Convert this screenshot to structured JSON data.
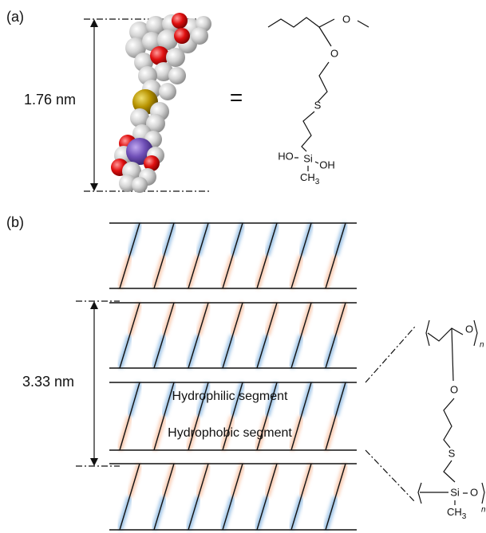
{
  "panel_a": {
    "label": "(a)",
    "length": "1.76 nm",
    "equals": "=",
    "atoms": {
      "o1": "O",
      "o2": "O",
      "s": "S",
      "ho": "HO",
      "si": "Si",
      "oh": "OH",
      "ch": "CH",
      "ch_sub": "3"
    }
  },
  "panel_b": {
    "label": "(b)",
    "spacing": "3.33 nm",
    "hydrophilic": "Hydrophilic segment",
    "hydrophobic": "Hydrophobic segment",
    "atoms": {
      "o1": "O",
      "n1": "n",
      "o2": "O",
      "s": "S",
      "si": "Si",
      "o3": "O",
      "ch": "CH",
      "ch_sub": "3",
      "n2": "n"
    }
  }
}
